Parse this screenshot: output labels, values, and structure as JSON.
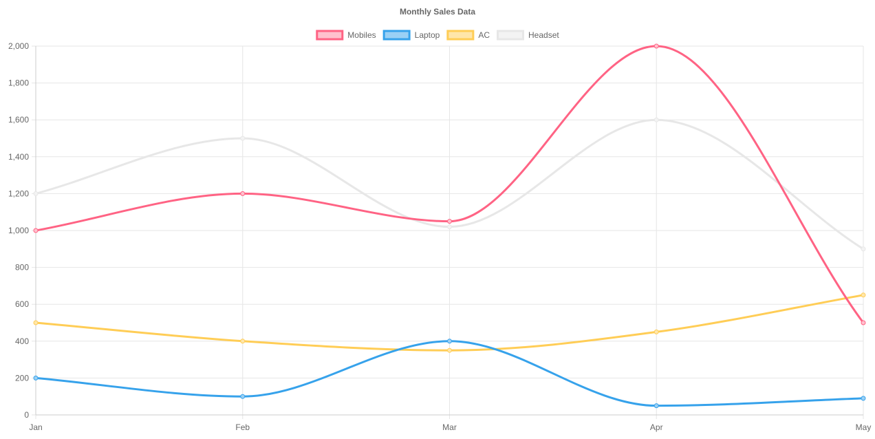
{
  "chart_data": {
    "type": "line",
    "title": "Monthly Sales Data",
    "categories": [
      "Jan",
      "Feb",
      "Mar",
      "Apr",
      "May"
    ],
    "ylim": [
      0,
      2000
    ],
    "yticks": [
      0,
      200,
      400,
      600,
      800,
      1000,
      1200,
      1400,
      1600,
      1800,
      2000
    ],
    "ytick_labels": [
      "0",
      "200",
      "400",
      "600",
      "800",
      "1,000",
      "1,200",
      "1,400",
      "1,600",
      "1,800",
      "2,000"
    ],
    "legend_position": "top",
    "grid": true,
    "curve": "smooth",
    "series": [
      {
        "name": "Mobiles",
        "values": [
          1000,
          1200,
          1050,
          2000,
          500
        ],
        "color": "#ff6384",
        "fill": "#ffc1ce"
      },
      {
        "name": "Laptop",
        "values": [
          200,
          100,
          400,
          50,
          90
        ],
        "color": "#36a2eb",
        "fill": "#9ad0f5"
      },
      {
        "name": "AC",
        "values": [
          500,
          400,
          350,
          450,
          650
        ],
        "color": "#ffcd56",
        "fill": "#ffe6aa"
      },
      {
        "name": "Headset",
        "values": [
          1200,
          1500,
          1020,
          1600,
          900
        ],
        "color": "#e7e7e7",
        "fill": "#f3f3f3"
      }
    ]
  }
}
